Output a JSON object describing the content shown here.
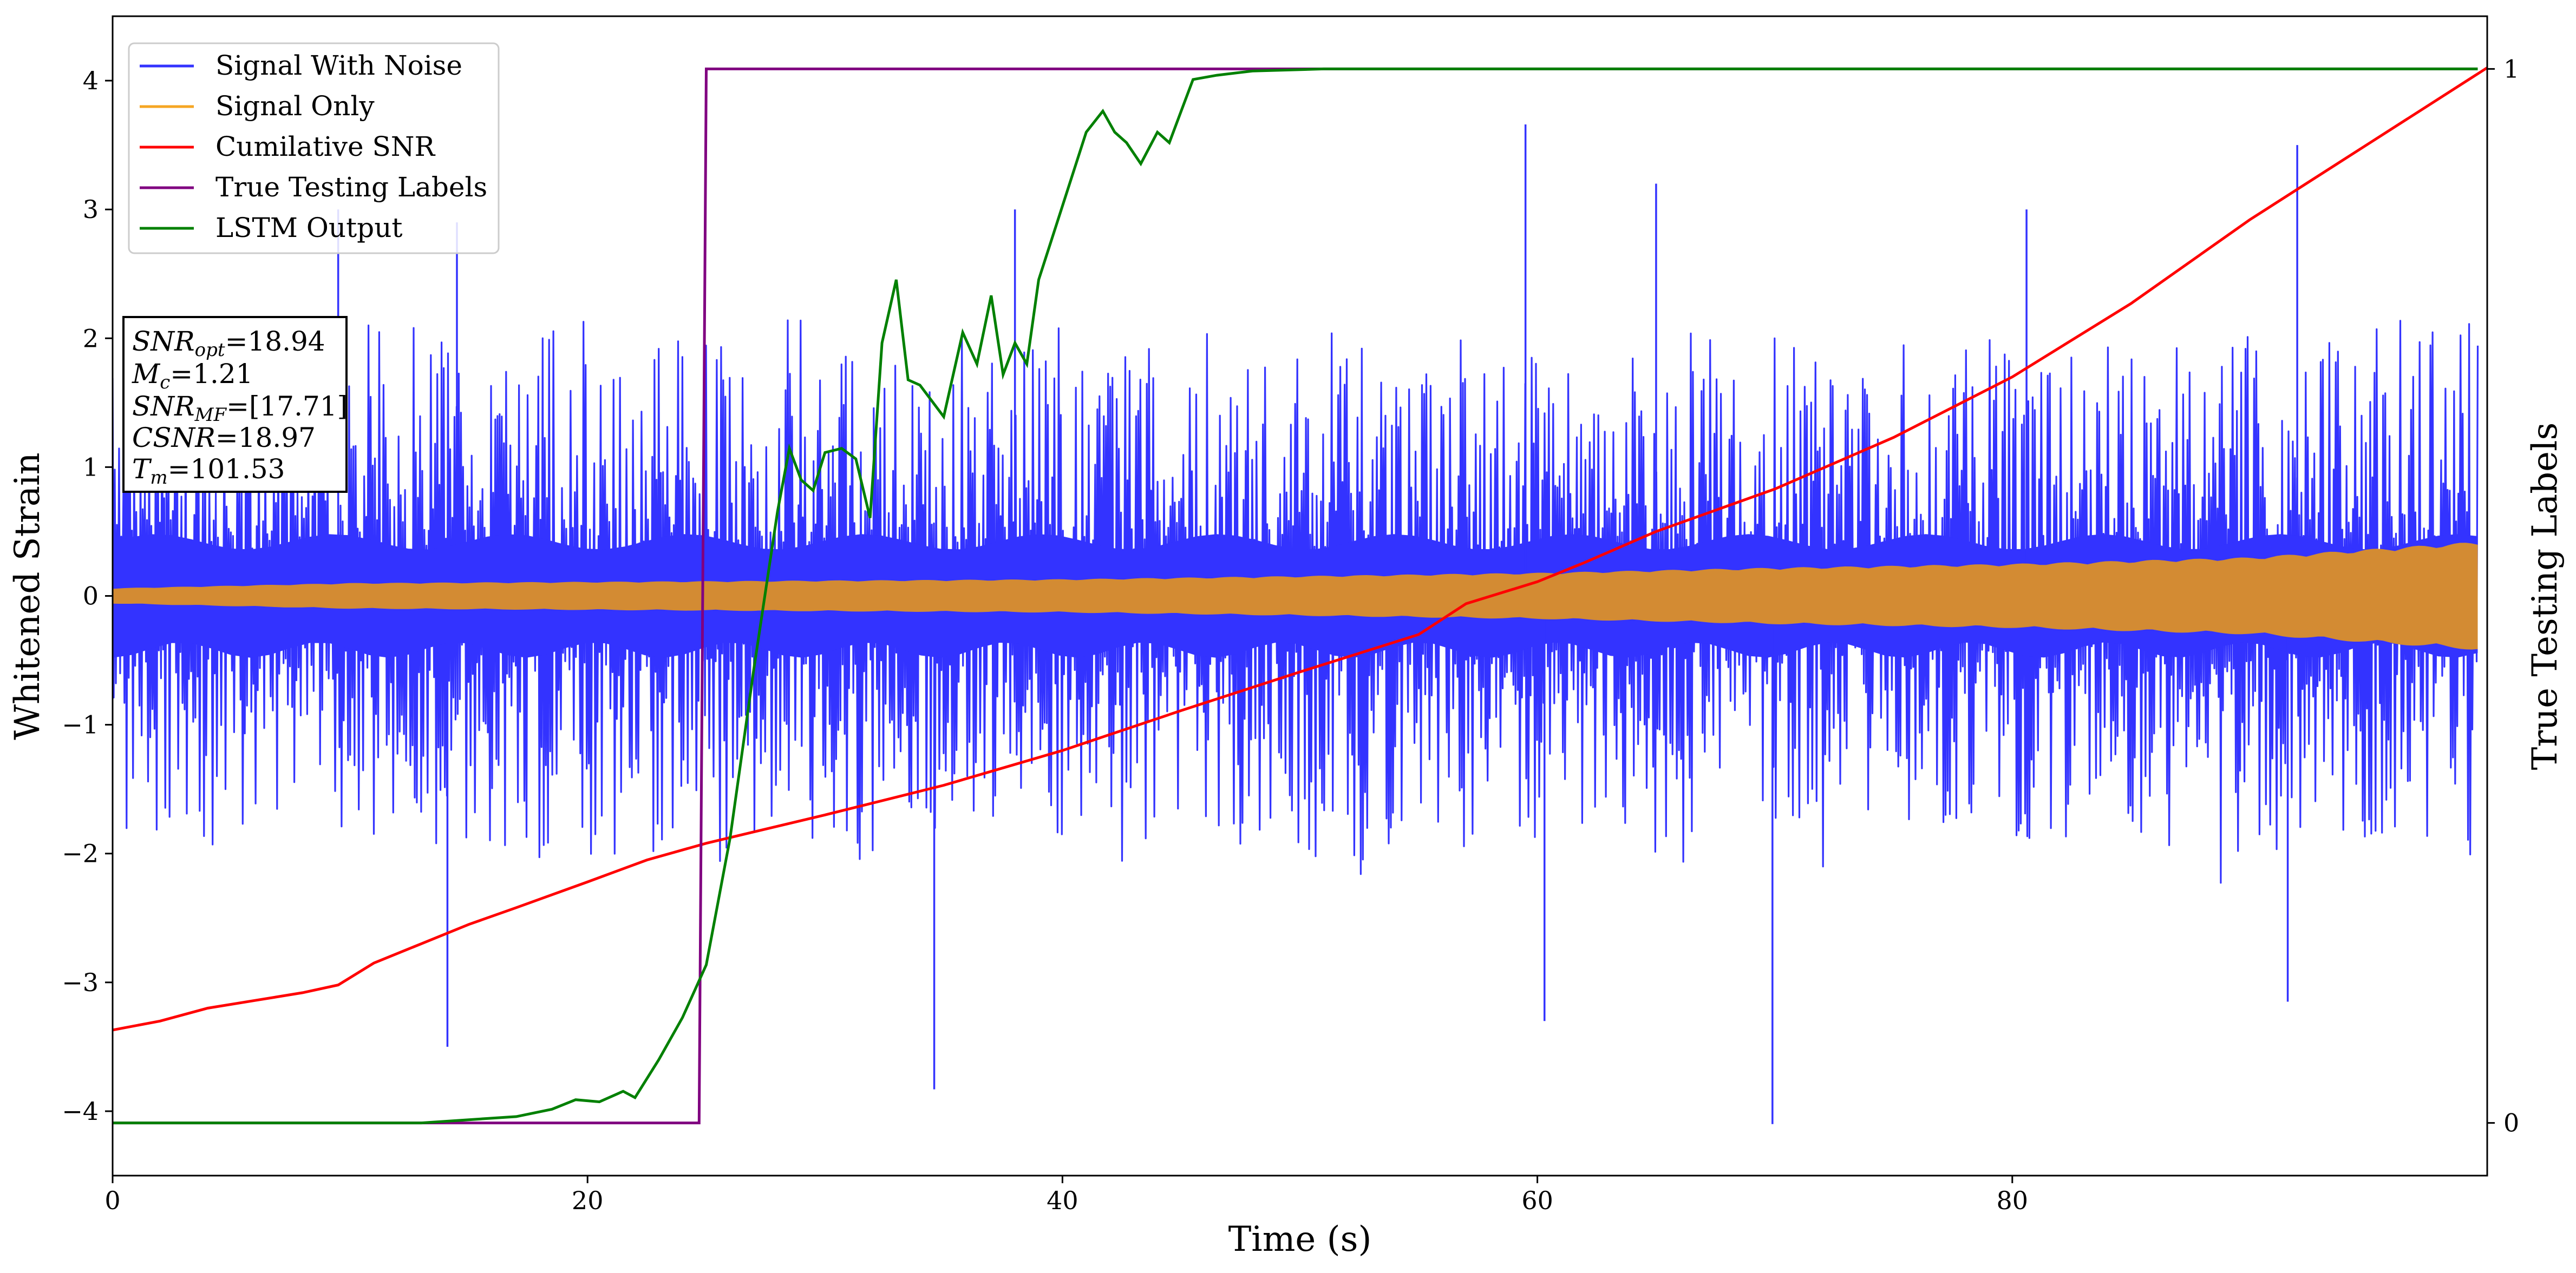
{
  "chart_data": {
    "type": "line",
    "xlabel": "Time (s)",
    "ylabel": "Whitened Strain",
    "y2label": "True Testing Labels",
    "xlim": [
      0,
      100
    ],
    "ylim": [
      -4.5,
      4.5
    ],
    "y2lim": [
      -0.05,
      1.05
    ],
    "xticks": [
      0,
      20,
      40,
      60,
      80
    ],
    "xtick_labels": [
      "0",
      "20",
      "40",
      "60",
      "80"
    ],
    "yticks": [
      -4,
      -3,
      -2,
      -1,
      0,
      1,
      2,
      3,
      4
    ],
    "ytick_labels": [
      "−4",
      "−3",
      "−2",
      "−1",
      "0",
      "1",
      "2",
      "3",
      "4"
    ],
    "y2ticks": [
      0,
      1
    ],
    "y2tick_labels": [
      "0",
      "1"
    ],
    "legend_position": "top-left",
    "grid": false,
    "series": [
      {
        "name": "Signal With Noise",
        "color": "#3333ff",
        "axis": "left",
        "kind": "noise-band",
        "typical_envelope": [
          [
            0,
            1.5
          ],
          [
            25,
            1.6
          ],
          [
            50,
            1.6
          ],
          [
            75,
            1.6
          ],
          [
            99.5,
            1.6
          ]
        ],
        "notable_peaks": [
          [
            9.5,
            3.0
          ],
          [
            14.5,
            2.9
          ],
          [
            38,
            3.0
          ],
          [
            59.5,
            3.66
          ],
          [
            65,
            3.2
          ],
          [
            80.6,
            3.0
          ],
          [
            92,
            3.5
          ]
        ],
        "notable_troughs": [
          [
            14.1,
            -3.5
          ],
          [
            34.6,
            -3.83
          ],
          [
            69.9,
            -4.1
          ],
          [
            91.6,
            -3.15
          ],
          [
            60.3,
            -3.3
          ]
        ]
      },
      {
        "name": "Signal Only",
        "color": "#f5a623",
        "axis": "left",
        "kind": "chirp",
        "amplitude": [
          [
            0,
            0.06
          ],
          [
            10,
            0.1
          ],
          [
            40,
            0.13
          ],
          [
            60,
            0.18
          ],
          [
            70,
            0.22
          ],
          [
            80,
            0.25
          ],
          [
            90,
            0.3
          ],
          [
            99.5,
            0.42
          ]
        ]
      },
      {
        "name": "Cumilative SNR",
        "color": "#ff0000",
        "axis": "left",
        "x": [
          0,
          2,
          4,
          6,
          8,
          9.5,
          11,
          13,
          15,
          17,
          20,
          22.5,
          25,
          30,
          35,
          40,
          45,
          50,
          55,
          57,
          60,
          62,
          65,
          70,
          75,
          80,
          85,
          90,
          95,
          100
        ],
        "y": [
          -3.37,
          -3.3,
          -3.2,
          -3.14,
          -3.08,
          -3.02,
          -2.85,
          -2.7,
          -2.55,
          -2.42,
          -2.22,
          -2.05,
          -1.92,
          -1.7,
          -1.47,
          -1.2,
          -0.89,
          -0.59,
          -0.3,
          -0.06,
          0.11,
          0.26,
          0.5,
          0.83,
          1.23,
          1.7,
          2.27,
          2.92,
          3.51,
          4.1
        ]
      },
      {
        "name": "True Testing Labels",
        "color": "#800080",
        "axis": "right",
        "x": [
          0,
          24.7,
          25.0,
          99.6
        ],
        "y": [
          0,
          0,
          1,
          1
        ]
      },
      {
        "name": "LSTM Output",
        "color": "#008000",
        "axis": "right",
        "x": [
          0,
          13,
          15,
          17,
          18.5,
          19.5,
          20.5,
          21.5,
          22,
          23,
          24,
          25,
          26,
          27,
          28,
          28.5,
          29,
          29.5,
          30,
          30.7,
          31.3,
          31.9,
          32.4,
          33,
          33.5,
          34,
          35,
          35.8,
          36.4,
          37,
          37.5,
          38,
          38.5,
          39,
          40,
          41,
          41.7,
          42.2,
          42.7,
          43.3,
          44,
          44.5,
          45,
          45.5,
          46.5,
          48,
          51,
          56,
          99.6
        ],
        "y": [
          0,
          0,
          0.003,
          0.006,
          0.013,
          0.022,
          0.02,
          0.03,
          0.024,
          0.06,
          0.1,
          0.15,
          0.27,
          0.43,
          0.58,
          0.64,
          0.61,
          0.6,
          0.636,
          0.64,
          0.63,
          0.574,
          0.74,
          0.8,
          0.705,
          0.7,
          0.67,
          0.75,
          0.72,
          0.785,
          0.71,
          0.74,
          0.72,
          0.8,
          0.87,
          0.94,
          0.96,
          0.94,
          0.93,
          0.91,
          0.94,
          0.93,
          0.96,
          0.99,
          0.994,
          0.998,
          1.0,
          1.0,
          1.0
        ]
      }
    ],
    "annotation_lines": [
      "SNR_opt=18.94",
      "M_c=1.21",
      "SNR_MF=[17.71]",
      "CSNR=18.97",
      "T_m=101.53"
    ]
  },
  "annotation": {
    "line1": {
      "base": "SNR",
      "sub": "opt",
      "value": "=18.94"
    },
    "line2": {
      "base": "M",
      "sub": "c",
      "value": "=1.21"
    },
    "line3": {
      "base": "SNR",
      "sub": "MF",
      "value": "=[17.71]"
    },
    "line4": {
      "base": "CSNR",
      "value": "=18.97"
    },
    "line5": {
      "base": "T",
      "sub": "m",
      "value": "=101.53"
    }
  }
}
